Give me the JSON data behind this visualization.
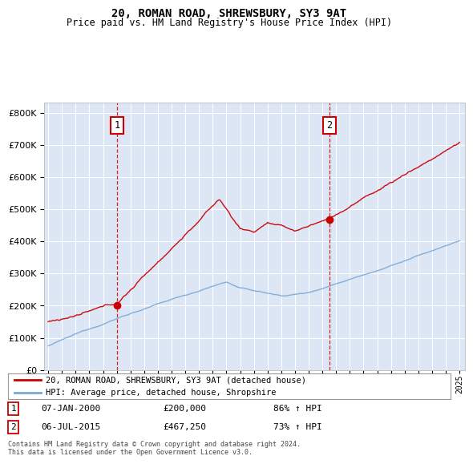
{
  "title": "20, ROMAN ROAD, SHREWSBURY, SY3 9AT",
  "subtitle": "Price paid vs. HM Land Registry's House Price Index (HPI)",
  "plot_bg_color": "#dce6f5",
  "sale1_date": 2000.03,
  "sale1_price": 200000,
  "sale1_label": "1",
  "sale2_date": 2015.51,
  "sale2_price": 467250,
  "sale2_label": "2",
  "legend_entry1": "20, ROMAN ROAD, SHREWSBURY, SY3 9AT (detached house)",
  "legend_entry2": "HPI: Average price, detached house, Shropshire",
  "note1_num": "1",
  "note1_date": "07-JAN-2000",
  "note1_price": "£200,000",
  "note1_pct": "86% ↑ HPI",
  "note2_num": "2",
  "note2_date": "06-JUL-2015",
  "note2_price": "£467,250",
  "note2_pct": "73% ↑ HPI",
  "footer": "Contains HM Land Registry data © Crown copyright and database right 2024.\nThis data is licensed under the Open Government Licence v3.0.",
  "ylim_min": 0,
  "ylim_max": 830000,
  "red_color": "#cc0000",
  "blue_color": "#7aa8d4"
}
